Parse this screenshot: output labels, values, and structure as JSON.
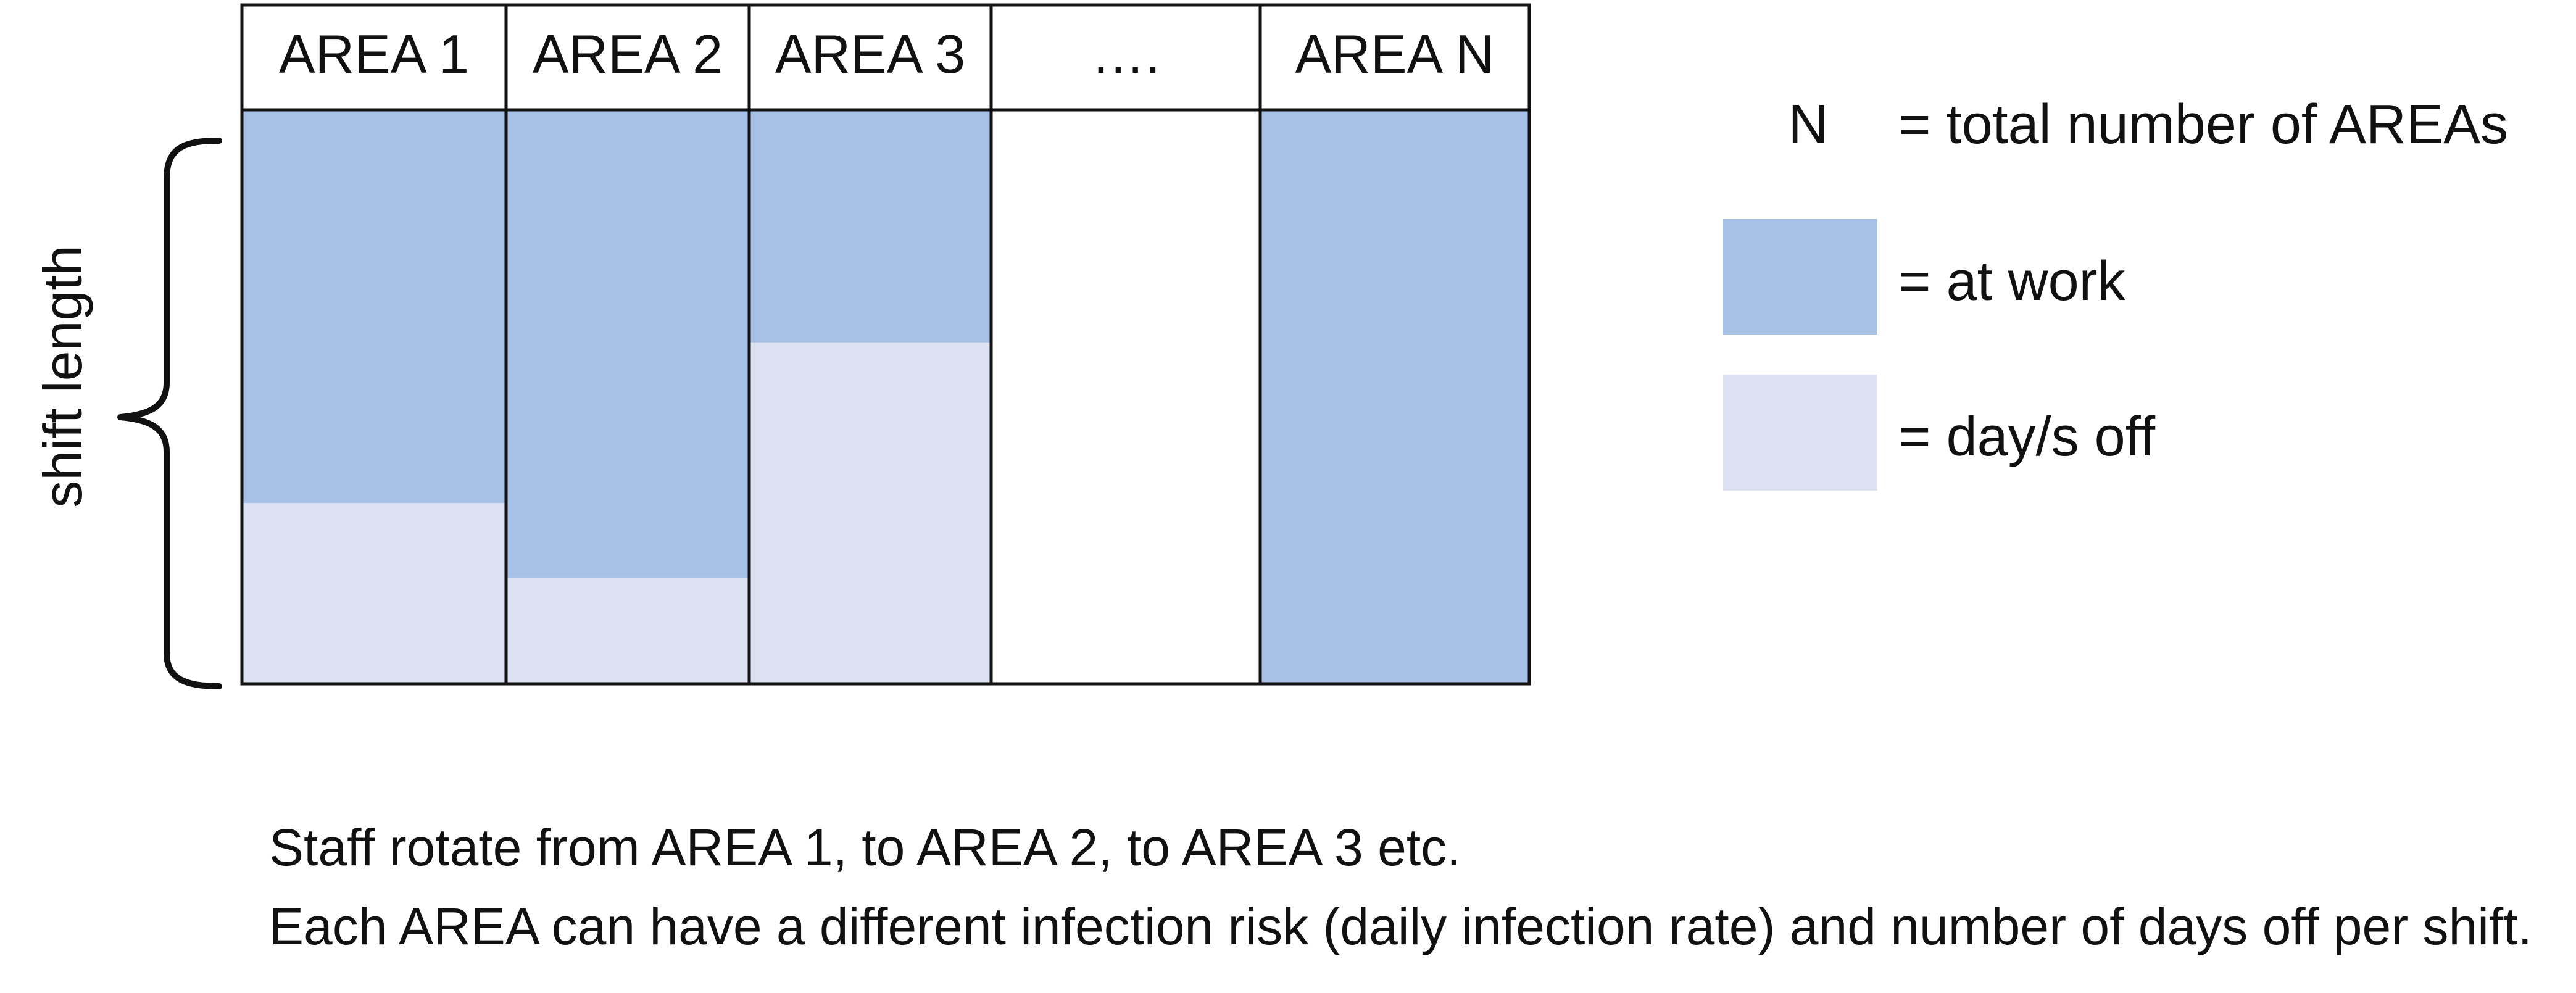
{
  "areas": [
    {
      "label": "AREA 1",
      "at_work_fraction": 0.685
    },
    {
      "label": "AREA 2",
      "at_work_fraction": 0.815
    },
    {
      "label": "AREA 3",
      "at_work_fraction": 0.405
    },
    {
      "label": "…."
    },
    {
      "label": "AREA N",
      "at_work_fraction": 1.0
    }
  ],
  "brace_label": "shift length",
  "legend": {
    "n_symbol": "N",
    "n_text": "= total number of AREAs",
    "at_work_text": "= at work",
    "days_off_text": "= day/s off"
  },
  "notes": [
    "Staff rotate from AREA 1, to AREA 2, to AREA 3 etc.",
    "Each AREA can have a different infection risk (daily infection rate) and number of days off per shift."
  ],
  "colors": {
    "at_work": "#a7c0e6",
    "days_off": "#dce2f2",
    "border": "#111111"
  }
}
